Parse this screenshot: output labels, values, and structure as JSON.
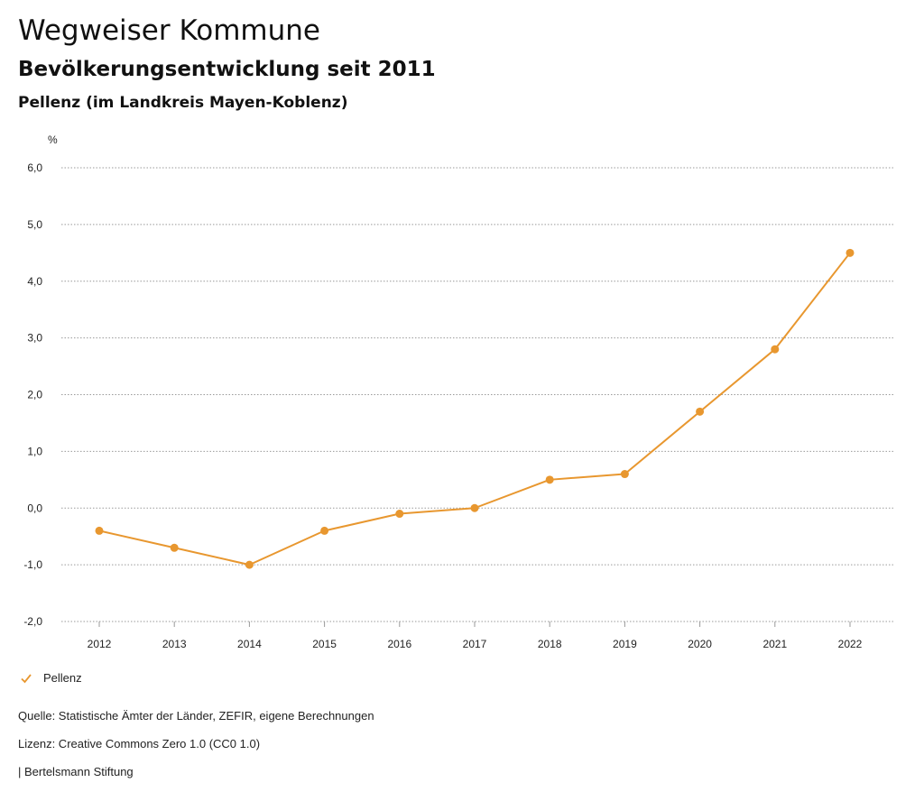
{
  "header": {
    "title": "Wegweiser Kommune",
    "subtitle": "Bevölkerungsentwicklung seit 2011",
    "place": "Pellenz (im Landkreis Mayen-Koblenz)"
  },
  "chart_data": {
    "type": "line",
    "title": "Bevölkerungsentwicklung seit 2011",
    "subtitle": "Pellenz (im Landkreis Mayen-Koblenz)",
    "xlabel": "",
    "ylabel": "%",
    "x": [
      "2012",
      "2013",
      "2014",
      "2015",
      "2016",
      "2017",
      "2018",
      "2019",
      "2020",
      "2021",
      "2022"
    ],
    "series": [
      {
        "name": "Pellenz",
        "color": "#E8972F",
        "values": [
          -0.4,
          -0.7,
          -1.0,
          -0.4,
          -0.1,
          0.0,
          0.5,
          0.6,
          1.7,
          2.8,
          4.5
        ]
      }
    ],
    "ylim": [
      -2.0,
      6.0
    ],
    "yticks": [
      6.0,
      5.0,
      4.0,
      3.0,
      2.0,
      1.0,
      0.0,
      -1.0,
      -2.0
    ],
    "ytick_labels": [
      "6,0",
      "5,0",
      "4,0",
      "3,0",
      "2,0",
      "1,0",
      "0,0",
      "-1,0",
      "-2,0"
    ],
    "grid": true,
    "legend_position": "bottom-left"
  },
  "legend": {
    "label": "Pellenz",
    "icon": "check-icon",
    "color": "#E8972F"
  },
  "footer": {
    "source": "Quelle: Statistische Ämter der Länder, ZEFIR, eigene Berechnungen",
    "license": "Lizenz: Creative Commons Zero 1.0 (CC0 1.0)",
    "publisher": "| Bertelsmann Stiftung"
  }
}
